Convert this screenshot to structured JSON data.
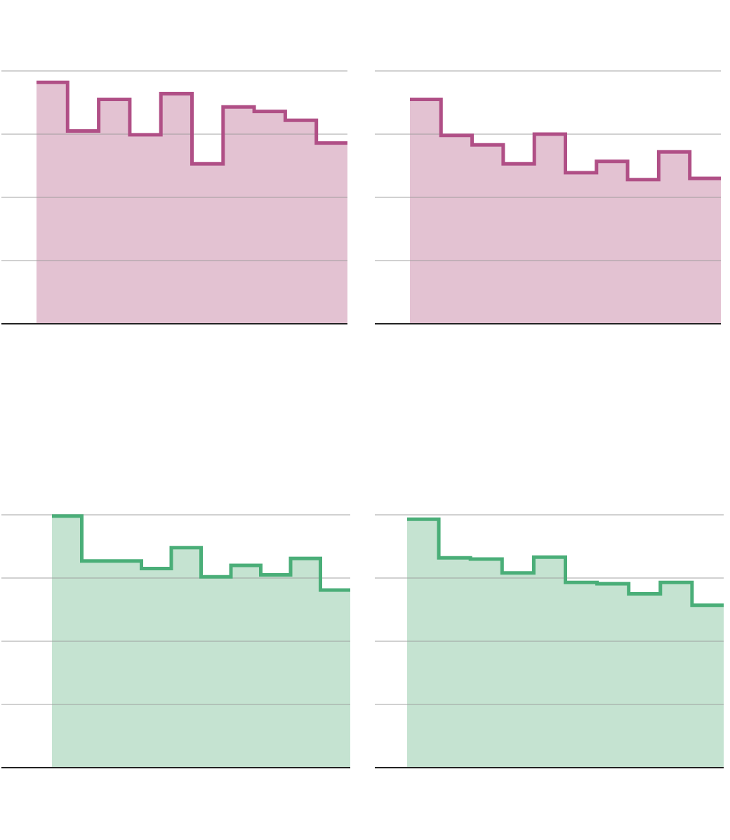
{
  "colors": {
    "magenta_line": "#b04f86",
    "magenta_fill": "#e3c2d2",
    "green_line": "#4aae78",
    "green_fill": "#c5e3d1",
    "grid": "#cfcfcf",
    "axis": "#222222"
  },
  "chart_data": [
    {
      "type": "area",
      "step": true,
      "color": "magenta",
      "grid": true,
      "ylim": [
        0,
        4
      ],
      "x": [
        0,
        1,
        2,
        3,
        4,
        5,
        6,
        7,
        8,
        9
      ],
      "values": [
        3.82,
        3.05,
        3.55,
        2.99,
        3.64,
        2.53,
        3.43,
        3.36,
        3.22,
        2.86
      ]
    },
    {
      "type": "area",
      "step": true,
      "color": "magenta",
      "grid": true,
      "ylim": [
        0,
        4
      ],
      "x": [
        0,
        1,
        2,
        3,
        4,
        5,
        6,
        7,
        8,
        9
      ],
      "values": [
        3.55,
        2.98,
        2.83,
        2.53,
        3.0,
        2.39,
        2.57,
        2.28,
        2.72,
        2.3
      ]
    },
    {
      "type": "area",
      "step": true,
      "color": "green",
      "grid": true,
      "ylim": [
        0,
        4
      ],
      "x": [
        0,
        1,
        2,
        3,
        4,
        5,
        6,
        7,
        8,
        9
      ],
      "values": [
        3.98,
        3.27,
        3.27,
        3.15,
        3.48,
        3.02,
        3.2,
        3.05,
        3.31,
        2.81
      ]
    },
    {
      "type": "area",
      "step": true,
      "color": "green",
      "grid": true,
      "ylim": [
        0,
        4
      ],
      "x": [
        0,
        1,
        2,
        3,
        4,
        5,
        6,
        7,
        8,
        9
      ],
      "values": [
        3.93,
        3.32,
        3.3,
        3.08,
        3.33,
        2.93,
        2.91,
        2.75,
        2.93,
        2.57
      ]
    }
  ]
}
